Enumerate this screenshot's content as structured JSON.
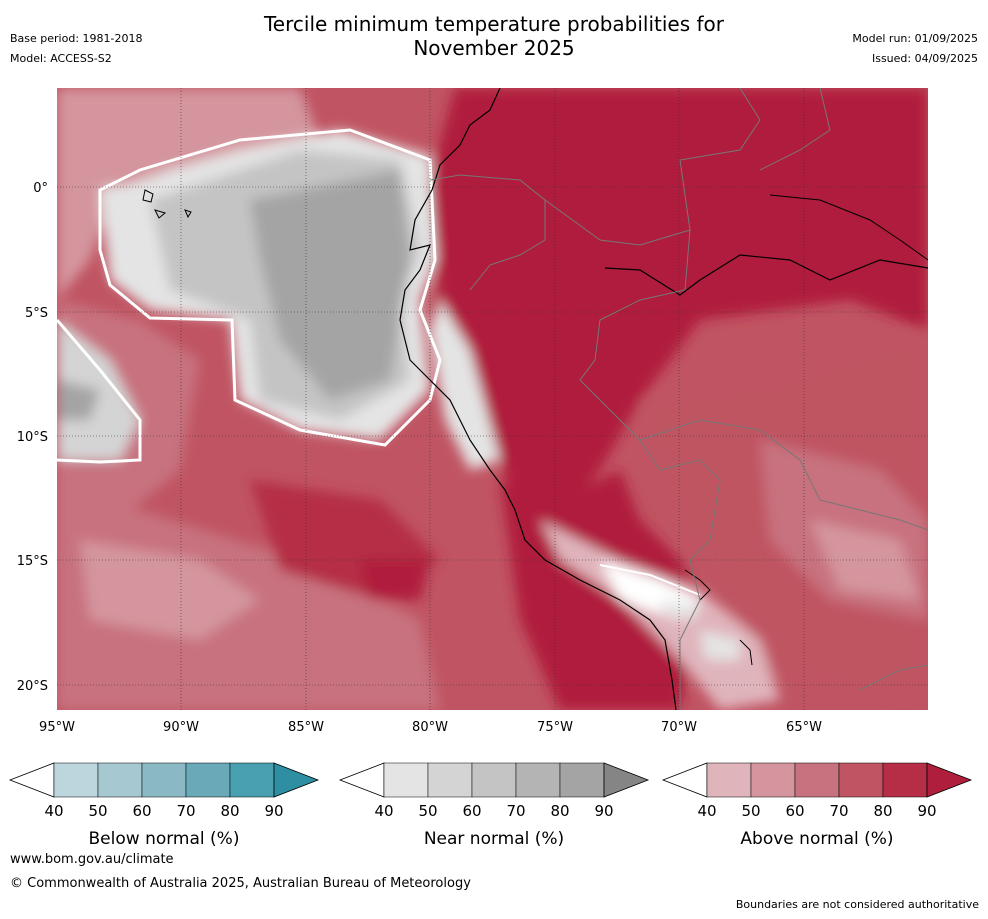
{
  "title_line1": "Tercile minimum temperature probabilities for",
  "title_line2": "November 2025",
  "meta_left": {
    "base_period": "Base period: 1981-2018",
    "model": "Model: ACCESS-S2"
  },
  "meta_right": {
    "model_run": "Model run: 01/09/2025",
    "issued": "Issued: 04/09/2025"
  },
  "map": {
    "lat_labels": [
      "0°",
      "5°S",
      "10°S",
      "15°S",
      "20°S"
    ],
    "lon_labels": [
      "95°W",
      "90°W",
      "85°W",
      "80°W",
      "75°W",
      "70°W",
      "65°W"
    ]
  },
  "colorbars": [
    {
      "label": "Below normal (%)",
      "ticks": [
        "40",
        "50",
        "60",
        "70",
        "80",
        "90"
      ],
      "colors": [
        "#ffffff",
        "#bcd6dd",
        "#a6c8d0",
        "#8ab8c4",
        "#6aa9b8",
        "#48a0b0",
        "#2e8fa3"
      ]
    },
    {
      "label": "Near normal (%)",
      "ticks": [
        "40",
        "50",
        "60",
        "70",
        "80",
        "90"
      ],
      "colors": [
        "#ffffff",
        "#e4e4e4",
        "#d4d4d4",
        "#c4c4c4",
        "#b4b4b4",
        "#a4a4a4",
        "#858585"
      ]
    },
    {
      "label": "Above normal (%)",
      "ticks": [
        "40",
        "50",
        "60",
        "70",
        "80",
        "90"
      ],
      "colors": [
        "#ffffff",
        "#e0b4bb",
        "#d4959e",
        "#c8727f",
        "#c05462",
        "#b52e45",
        "#b01e3d"
      ]
    }
  ],
  "footer": {
    "url": "www.bom.gov.au/climate",
    "copyright": "© Commonwealth of Australia 2025, Australian Bureau of Meteorology",
    "disclaimer": "Boundaries are not considered authoritative"
  }
}
